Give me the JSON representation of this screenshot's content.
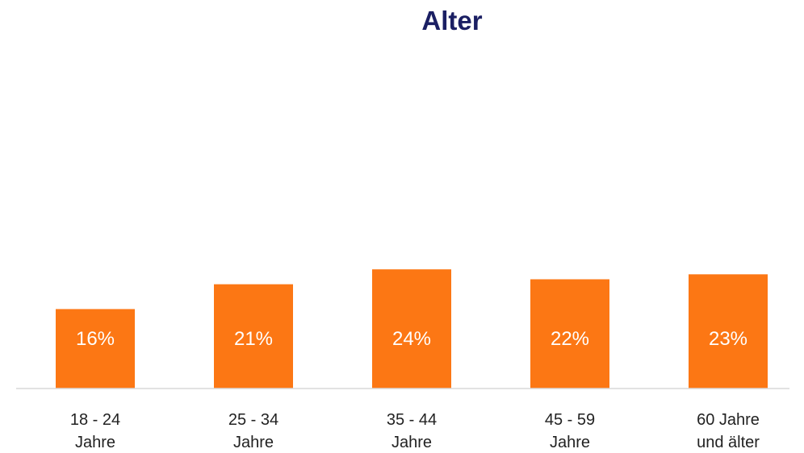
{
  "chart_data": {
    "type": "bar",
    "title": "Alter",
    "categories": [
      [
        "18 - 24",
        "Jahre"
      ],
      [
        "25 - 34",
        "Jahre"
      ],
      [
        "35 - 44",
        "Jahre"
      ],
      [
        "45 - 59",
        "Jahre"
      ],
      [
        "60 Jahre",
        "und älter"
      ]
    ],
    "values": [
      16,
      21,
      24,
      22,
      23
    ],
    "data_labels": [
      "16%",
      "21%",
      "24%",
      "22%",
      "23%"
    ],
    "xlabel": "",
    "ylabel": "",
    "ylim": [
      0,
      100
    ],
    "grid": false,
    "legend": "none",
    "bar_color": "#fc7714",
    "title_color": "#1b1f63",
    "axis_color": "#d9d9d9"
  }
}
